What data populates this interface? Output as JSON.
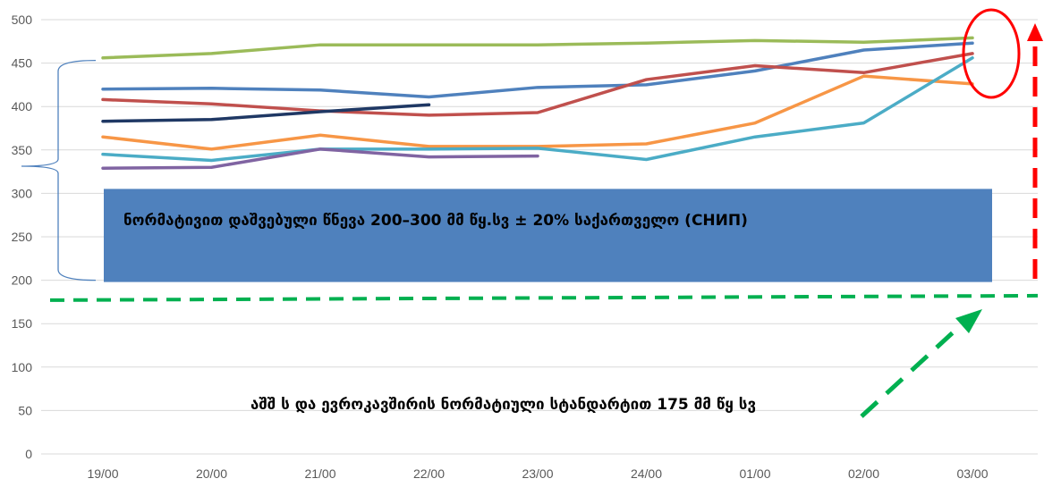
{
  "chart_data": {
    "type": "line",
    "categories": [
      "19/00",
      "20/00",
      "21/00",
      "22/00",
      "23/00",
      "24/00",
      "01/00",
      "02/00",
      "03/00"
    ],
    "ylim": [
      0,
      500
    ],
    "yticks": [
      "0",
      "50",
      "100",
      "150",
      "200",
      "250",
      "300",
      "350",
      "400",
      "450",
      "500"
    ],
    "grid": true,
    "series": [
      {
        "color": "#9bbb59",
        "values": [
          456,
          461,
          471,
          471,
          471,
          473,
          476,
          474,
          479
        ]
      },
      {
        "color": "#4f81bd",
        "values": [
          420,
          421,
          419,
          411,
          422,
          425,
          441,
          465,
          473
        ]
      },
      {
        "color": "#c0504d",
        "values": [
          408,
          403,
          395,
          390,
          393,
          431,
          447,
          439,
          461
        ]
      },
      {
        "color": "#1f3864",
        "values": [
          383,
          385,
          394,
          402,
          null,
          null,
          null,
          null,
          null
        ]
      },
      {
        "color": "#f79646",
        "values": [
          365,
          351,
          367,
          354,
          354,
          357,
          381,
          435,
          426
        ]
      },
      {
        "color": "#4bacc6",
        "values": [
          345,
          338,
          351,
          351,
          352,
          339,
          365,
          381,
          456
        ]
      },
      {
        "color": "#8064a2",
        "values": [
          329,
          330,
          351,
          342,
          343,
          null,
          null,
          null,
          null
        ]
      }
    ],
    "annotations": {
      "normative_band": {
        "label": "ნორმატივით დაშვებული წნევა 200–300 მმ წყ.სვ ± 20%      საქართველო  (СНИП)",
        "from": 200,
        "to": 300,
        "color": "#4f81bd"
      },
      "us_eu_line": {
        "label": "აშშ ს და ევროკავშირის ნორმატიული სტანდარტით  175 მმ წყ სვ",
        "value": 175,
        "color": "#00b050"
      },
      "brace_range": [
        200,
        450
      ],
      "highlight_color": "#ff0000"
    }
  }
}
